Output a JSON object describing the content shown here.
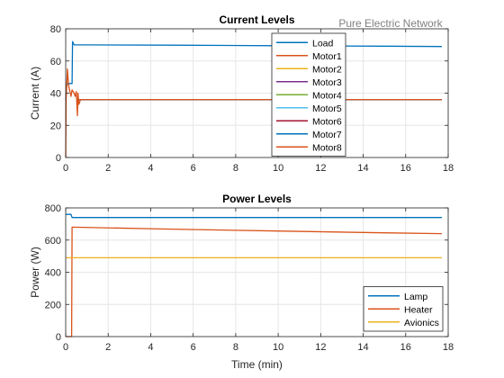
{
  "watermark": "Pure Electric Network",
  "chart_data": [
    {
      "type": "line",
      "title": "Current Levels",
      "xlabel": "",
      "ylabel": "Current (A)",
      "xlim": [
        0,
        18
      ],
      "ylim": [
        0,
        80
      ],
      "xticks": [
        0,
        2,
        4,
        6,
        8,
        10,
        12,
        14,
        16,
        18
      ],
      "yticks": [
        0,
        20,
        40,
        60,
        80
      ],
      "grid": true,
      "legend_position": "top-right",
      "series": [
        {
          "name": "Load",
          "color": "#0072BD",
          "x": [
            0,
            0.05,
            0.1,
            0.2,
            0.3,
            0.32,
            0.4,
            1,
            5,
            10,
            15,
            17.7
          ],
          "y": [
            36,
            45,
            46,
            46,
            46,
            72,
            70,
            70,
            69.8,
            69.5,
            69.2,
            69
          ]
        },
        {
          "name": "Motor1",
          "color": "#D95319",
          "x": [
            0,
            0.02,
            0.08,
            0.12,
            0.15,
            0.2,
            0.25,
            0.3,
            0.4,
            0.45,
            0.5,
            0.55,
            0.58,
            0.62,
            0.7,
            1,
            17.7
          ],
          "y": [
            0,
            36,
            55,
            48,
            44,
            41,
            38,
            42,
            40,
            38,
            41,
            26,
            40,
            33,
            36,
            36,
            36
          ]
        },
        {
          "name": "Motor2",
          "color": "#EDB120",
          "x": [
            0.6,
            17.7
          ],
          "y": [
            36,
            36
          ]
        },
        {
          "name": "Motor3",
          "color": "#7E2F8E",
          "x": [
            0.6,
            17.7
          ],
          "y": [
            36,
            36
          ]
        },
        {
          "name": "Motor4",
          "color": "#77AC30",
          "x": [
            0.6,
            17.7
          ],
          "y": [
            36,
            36
          ]
        },
        {
          "name": "Motor5",
          "color": "#4DBEEE",
          "x": [
            0.6,
            17.7
          ],
          "y": [
            36,
            36
          ]
        },
        {
          "name": "Motor6",
          "color": "#A2142F",
          "x": [
            0.6,
            17.7
          ],
          "y": [
            36,
            36
          ]
        },
        {
          "name": "Motor7",
          "color": "#0072BD",
          "x": [
            0.6,
            17.7
          ],
          "y": [
            36,
            36
          ]
        },
        {
          "name": "Motor8",
          "color": "#D95319",
          "x": [
            0.6,
            17.7
          ],
          "y": [
            36,
            36
          ]
        }
      ]
    },
    {
      "type": "line",
      "title": "Power Levels",
      "xlabel": "Time (min)",
      "ylabel": "Power (W)",
      "xlim": [
        0,
        18
      ],
      "ylim": [
        0,
        800
      ],
      "xticks": [
        0,
        2,
        4,
        6,
        8,
        10,
        12,
        14,
        16,
        18
      ],
      "yticks": [
        0,
        200,
        400,
        600,
        800
      ],
      "grid": true,
      "legend_position": "bottom-right",
      "series": [
        {
          "name": "Lamp",
          "color": "#0072BD",
          "x": [
            0,
            0.25,
            0.3,
            5,
            10,
            17.7
          ],
          "y": [
            760,
            760,
            740,
            740,
            740,
            740
          ]
        },
        {
          "name": "Heater",
          "color": "#D95319",
          "x": [
            0,
            0.28,
            0.3,
            0.32,
            5,
            10,
            15,
            17.7
          ],
          "y": [
            0,
            0,
            680,
            680,
            668,
            656,
            645,
            640
          ]
        },
        {
          "name": "Avionics",
          "color": "#EDB120",
          "x": [
            0,
            17.7
          ],
          "y": [
            490,
            490
          ]
        }
      ]
    }
  ]
}
